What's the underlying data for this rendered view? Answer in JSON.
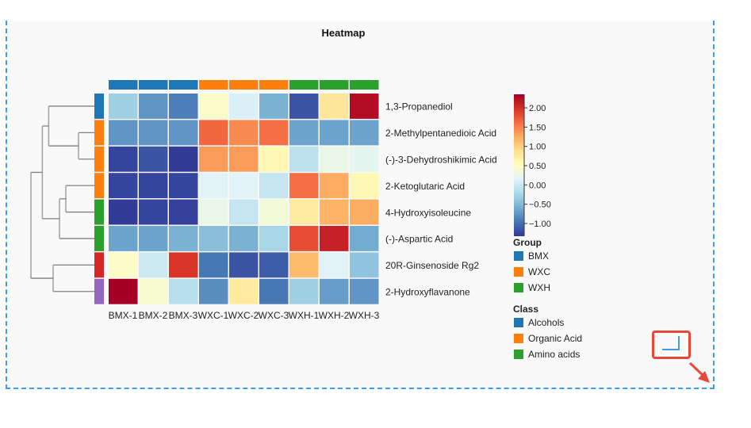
{
  "chart_data": {
    "type": "heatmap",
    "title": "Heatmap",
    "columns": [
      "BMX-1",
      "BMX-2",
      "BMX-3",
      "WXC-1",
      "WXC-2",
      "WXC-3",
      "WXH-1",
      "WXH-2",
      "WXH-3"
    ],
    "column_groups": [
      "BMX",
      "BMX",
      "BMX",
      "WXC",
      "WXC",
      "WXC",
      "WXH",
      "WXH",
      "WXH"
    ],
    "rows": [
      "1,3-Propanediol",
      "2-Methylpentanedioic Acid",
      "(-)-3-Dehydroshikimic Acid",
      "2-Ketoglutaric Acid",
      "4-Hydroxyisoleucine",
      "(-)-Aspartic Acid",
      "20R-Ginsenoside Rg2",
      "2-Hydroxyflavanone"
    ],
    "row_class_colors": [
      "#1f77b4",
      "#ff7f0e",
      "#ff7f0e",
      "#ff7f0e",
      "#2ca02c",
      "#2ca02c",
      "#d62728",
      "#9467bd"
    ],
    "values": [
      [
        -0.3,
        -0.75,
        -0.9,
        0.45,
        0.1,
        -0.55,
        -1.15,
        0.8,
        2.25
      ],
      [
        -0.75,
        -0.75,
        -0.75,
        1.65,
        1.45,
        1.6,
        -0.65,
        -0.65,
        -0.65
      ],
      [
        -1.25,
        -1.15,
        -1.3,
        1.35,
        1.35,
        0.6,
        -0.1,
        0.25,
        0.2
      ],
      [
        -1.25,
        -1.25,
        -1.25,
        0.15,
        0.15,
        -0.05,
        1.6,
        1.25,
        0.6
      ],
      [
        -1.3,
        -1.25,
        -1.27,
        0.25,
        -0.05,
        0.35,
        0.75,
        1.2,
        1.25
      ],
      [
        -0.65,
        -0.65,
        -0.55,
        -0.45,
        -0.55,
        -0.25,
        1.8,
        2.1,
        -0.6
      ],
      [
        0.45,
        0.0,
        1.95,
        -0.95,
        -1.15,
        -1.1,
        1.15,
        0.15,
        -0.4
      ],
      [
        2.35,
        0.4,
        -0.15,
        -0.8,
        0.75,
        -0.95,
        -0.3,
        -0.7,
        -0.75
      ]
    ],
    "colorscale": {
      "name": "RdYlBu_r",
      "range": [
        -1.33,
        2.35
      ],
      "ticks": [
        2.0,
        1.5,
        1.0,
        0.5,
        0.0,
        -0.5,
        -1.0
      ],
      "tick_labels": [
        "2.00",
        "1.50",
        "1.00",
        "0.50",
        "0.00",
        "−0.50",
        "−1.00"
      ],
      "stops": [
        "#313695",
        "#4575b4",
        "#74add1",
        "#abd9e9",
        "#e0f3f8",
        "#ffffbf",
        "#fee090",
        "#fdae61",
        "#f46d43",
        "#d73027",
        "#a50026"
      ]
    },
    "row_dendrogram": {
      "placement": "left",
      "merges": [
        {
          "children": [
            "r1",
            "r2"
          ],
          "height": 0.25
        },
        {
          "children": [
            "r3",
            "r4"
          ],
          "height": 0.45
        },
        {
          "children": [
            "r0",
            "m0"
          ],
          "height": 0.72
        },
        {
          "children": [
            "m1",
            "r5"
          ],
          "height": 0.55
        },
        {
          "children": [
            "m2",
            "m3"
          ],
          "height": 0.82
        },
        {
          "children": [
            "r6",
            "r7"
          ],
          "height": 0.65
        },
        {
          "children": [
            "m4",
            "m5"
          ],
          "height": 1.0
        }
      ]
    },
    "legends": [
      {
        "title": "Group",
        "items": [
          {
            "label": "BMX",
            "color": "#1f77b4"
          },
          {
            "label": "WXC",
            "color": "#ff7f0e"
          },
          {
            "label": "WXH",
            "color": "#2ca02c"
          }
        ]
      },
      {
        "title": "Class",
        "items": [
          {
            "label": "Alcohols",
            "color": "#1f77b4"
          },
          {
            "label": "Organic Acid",
            "color": "#ff7f0e"
          },
          {
            "label": "Amino acids",
            "color": "#2ca02c"
          }
        ]
      }
    ],
    "legend_placement": "right"
  },
  "group_colors": {
    "BMX": "#1f77b4",
    "WXC": "#ff7f0e",
    "WXH": "#2ca02c"
  },
  "annotation": {
    "resize_handle_icon": "resize-corner-icon",
    "arrow_icon": "arrow-down-right-icon",
    "highlight_color": "#e8483c",
    "border_color": "#3d9bf0"
  }
}
